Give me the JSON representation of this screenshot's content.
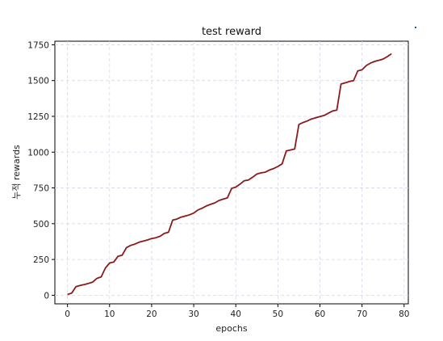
{
  "chart_data": {
    "type": "line",
    "title": "test reward",
    "xlabel": "epochs",
    "ylabel": "누적 rewards",
    "xlim": [
      -3,
      81
    ],
    "ylim": [
      -60,
      1775
    ],
    "xticks": [
      0,
      10,
      20,
      30,
      40,
      50,
      60,
      70,
      80
    ],
    "yticks": [
      0,
      250,
      500,
      750,
      1000,
      1250,
      1500,
      1750
    ],
    "grid": true,
    "series": [
      {
        "color": "#8b1a1a",
        "x": [
          0,
          1,
          2,
          3,
          4,
          5,
          6,
          7,
          8,
          9,
          10,
          11,
          12,
          13,
          14,
          15,
          16,
          17,
          18,
          19,
          20,
          21,
          22,
          23,
          24,
          25,
          26,
          27,
          28,
          29,
          30,
          31,
          32,
          33,
          34,
          35,
          36,
          37,
          38,
          39,
          40,
          41,
          42,
          43,
          44,
          45,
          46,
          47,
          48,
          49,
          50,
          51,
          52,
          53,
          54,
          55,
          56,
          57,
          58,
          59,
          60,
          61,
          62,
          63,
          64,
          65,
          66,
          67,
          68,
          69,
          70,
          71,
          72,
          73,
          74,
          75,
          76,
          77
        ],
        "y": [
          5,
          15,
          60,
          68,
          75,
          83,
          92,
          118,
          128,
          190,
          225,
          232,
          272,
          280,
          332,
          348,
          357,
          370,
          378,
          386,
          396,
          402,
          412,
          432,
          440,
          525,
          532,
          546,
          553,
          562,
          574,
          596,
          608,
          624,
          635,
          645,
          662,
          672,
          680,
          746,
          756,
          776,
          800,
          805,
          825,
          847,
          855,
          860,
          875,
          885,
          900,
          918,
          1008,
          1015,
          1022,
          1193,
          1207,
          1218,
          1232,
          1240,
          1248,
          1256,
          1272,
          1287,
          1294,
          1476,
          1484,
          1493,
          1500,
          1568,
          1575,
          1605,
          1622,
          1634,
          1642,
          1650,
          1667,
          1687
        ]
      }
    ]
  }
}
